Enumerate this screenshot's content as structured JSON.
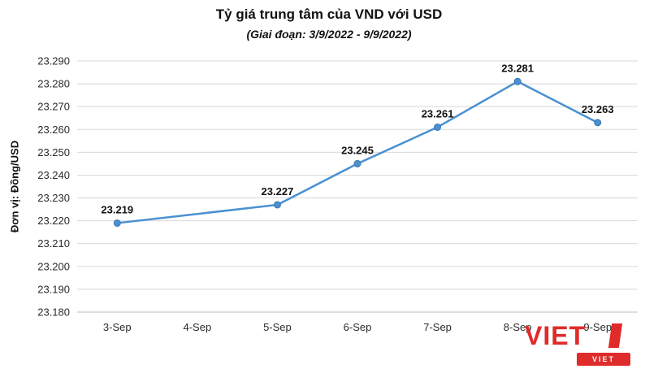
{
  "chart_data": {
    "type": "line",
    "title": "Tỷ giá trung tâm của VND với USD",
    "subtitle": "(Giai đoạn: 3/9/2022 - 9/9/2022)",
    "ylabel": "Đơn vị: Đồng/USD",
    "categories": [
      "3-Sep",
      "4-Sep",
      "5-Sep",
      "6-Sep",
      "7-Sep",
      "8-Sep",
      "9-Sep"
    ],
    "values": [
      23219,
      null,
      23227,
      23245,
      23261,
      23281,
      23263
    ],
    "point_labels": [
      "23.219",
      "23.227",
      "23.245",
      "23.261",
      "23.281",
      "23.263"
    ],
    "ylim": [
      23180,
      23290
    ],
    "y_ticks": [
      {
        "label": "23.290",
        "value": 23290
      },
      {
        "label": "23.280",
        "value": 23280
      },
      {
        "label": "23.270",
        "value": 23270
      },
      {
        "label": "23.260",
        "value": 23260
      },
      {
        "label": "23.250",
        "value": 23250
      },
      {
        "label": "23.240",
        "value": 23240
      },
      {
        "label": "23.230",
        "value": 23230
      },
      {
        "label": "23.220",
        "value": 23220
      },
      {
        "label": "23.210",
        "value": 23210
      },
      {
        "label": "23.200",
        "value": 23200
      },
      {
        "label": "23.190",
        "value": 23190
      },
      {
        "label": "23.180",
        "value": 23180
      }
    ],
    "grid": true,
    "legend": "none",
    "line_color": "#4a90d2",
    "marker_color": "#4a90d2",
    "marker_edge_color": "#3c77ad",
    "grid_color": "#d9d9d9",
    "axis_color": "#bfbfbf"
  },
  "logo": {
    "text": "VIET",
    "badge_text": "VIET",
    "color": "#e02b2b"
  }
}
